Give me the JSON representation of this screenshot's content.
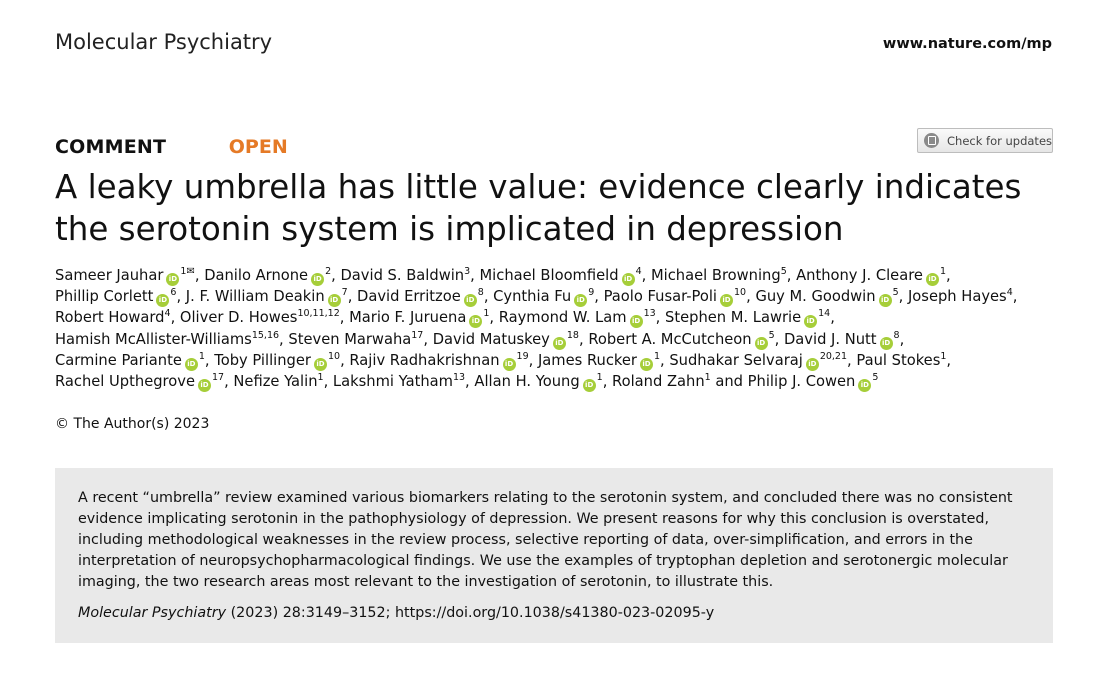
{
  "header": {
    "journal": "Molecular Psychiatry",
    "site": "www.nature.com/mp"
  },
  "article": {
    "type": "COMMENT",
    "access": "OPEN",
    "check_updates": "Check for updates",
    "title": "A leaky umbrella has little value: evidence clearly indicates the serotonin system is implicated in depression"
  },
  "author_lines": [
    [
      {
        "name": "Sameer Jauhar",
        "orcid": true,
        "sup": "1",
        "corresponding": true,
        "sep": ", "
      },
      {
        "name": "Danilo Arnone",
        "orcid": true,
        "sup": "2",
        "sep": ", "
      },
      {
        "name": "David S. Baldwin",
        "orcid": false,
        "sup": "3",
        "sep": ", "
      },
      {
        "name": "Michael Bloomfield",
        "orcid": true,
        "sup": "4",
        "sep": ", "
      },
      {
        "name": "Michael Browning",
        "orcid": false,
        "sup": "5",
        "sep": ", "
      },
      {
        "name": "Anthony J. Cleare",
        "orcid": true,
        "sup": "1",
        "sep": ","
      }
    ],
    [
      {
        "name": "Phillip Corlett",
        "orcid": true,
        "sup": "6",
        "sep": ", "
      },
      {
        "name": "J. F. William Deakin",
        "orcid": true,
        "sup": "7",
        "sep": ", "
      },
      {
        "name": "David Erritzoe",
        "orcid": true,
        "sup": "8",
        "sep": ", "
      },
      {
        "name": "Cynthia Fu",
        "orcid": true,
        "sup": "9",
        "sep": ", "
      },
      {
        "name": "Paolo Fusar-Poli",
        "orcid": true,
        "sup": "10",
        "sep": ", "
      },
      {
        "name": "Guy M. Goodwin",
        "orcid": true,
        "sup": "5",
        "sep": ", "
      },
      {
        "name": "Joseph Hayes",
        "orcid": false,
        "sup": "4",
        "sep": ","
      }
    ],
    [
      {
        "name": "Robert Howard",
        "orcid": false,
        "sup": "4",
        "sep": ", "
      },
      {
        "name": "Oliver D. Howes",
        "orcid": false,
        "sup": "10,11,12",
        "sep": ", "
      },
      {
        "name": "Mario F. Juruena",
        "orcid": true,
        "sup": "1",
        "sep": ", "
      },
      {
        "name": "Raymond W. Lam",
        "orcid": true,
        "sup": "13",
        "sep": ", "
      },
      {
        "name": "Stephen M. Lawrie",
        "orcid": true,
        "sup": "14",
        "sep": ","
      }
    ],
    [
      {
        "name": "Hamish McAllister-Williams",
        "orcid": false,
        "sup": "15,16",
        "sep": ", "
      },
      {
        "name": "Steven Marwaha",
        "orcid": false,
        "sup": "17",
        "sep": ", "
      },
      {
        "name": "David Matuskey",
        "orcid": true,
        "sup": "18",
        "sep": ", "
      },
      {
        "name": "Robert A. McCutcheon",
        "orcid": true,
        "sup": "5",
        "sep": ", "
      },
      {
        "name": "David J. Nutt",
        "orcid": true,
        "sup": "8",
        "sep": ","
      }
    ],
    [
      {
        "name": "Carmine Pariante",
        "orcid": true,
        "sup": "1",
        "sep": ", "
      },
      {
        "name": "Toby Pillinger",
        "orcid": true,
        "sup": "10",
        "sep": ", "
      },
      {
        "name": "Rajiv Radhakrishnan",
        "orcid": true,
        "sup": "19",
        "sep": ", "
      },
      {
        "name": "James Rucker",
        "orcid": true,
        "sup": "1",
        "sep": ", "
      },
      {
        "name": "Sudhakar Selvaraj",
        "orcid": true,
        "sup": "20,21",
        "sep": ", "
      },
      {
        "name": "Paul Stokes",
        "orcid": false,
        "sup": "1",
        "sep": ","
      }
    ],
    [
      {
        "name": "Rachel Upthegrove",
        "orcid": true,
        "sup": "17",
        "sep": ", "
      },
      {
        "name": "Nefize Yalin",
        "orcid": false,
        "sup": "1",
        "sep": ", "
      },
      {
        "name": "Lakshmi Yatham",
        "orcid": false,
        "sup": "13",
        "sep": ", "
      },
      {
        "name": "Allan H. Young",
        "orcid": true,
        "sup": "1",
        "sep": ", "
      },
      {
        "name": "Roland Zahn",
        "orcid": false,
        "sup": "1",
        "sep": " and "
      },
      {
        "name": "Philip J. Cowen",
        "orcid": true,
        "sup": "5",
        "sep": ""
      }
    ]
  ],
  "orcid_label": "iD",
  "envelope_symbol": "✉",
  "copyright": "© The Author(s) 2023",
  "abstract": "A recent “umbrella” review examined various biomarkers relating to the serotonin system, and concluded there was no consistent evidence implicating serotonin in the pathophysiology of depression. We present reasons for why this conclusion is overstated, including methodological weaknesses in the review process, selective reporting of data, over-simplification, and errors in the interpretation of neuropsychopharmacological findings. We use the examples of tryptophan depletion and serotonergic molecular imaging, the two research areas most relevant to the investigation of serotonin, to illustrate this.",
  "citation": {
    "journal": "Molecular Psychiatry",
    "details": " (2023) 28:3149–3152; https://doi.org/10.1038/s41380-023-02095-y"
  },
  "colors": {
    "open_accent": "#e57a26",
    "orcid_green": "#a6ce39",
    "abstract_bg": "#e9e9e9"
  }
}
